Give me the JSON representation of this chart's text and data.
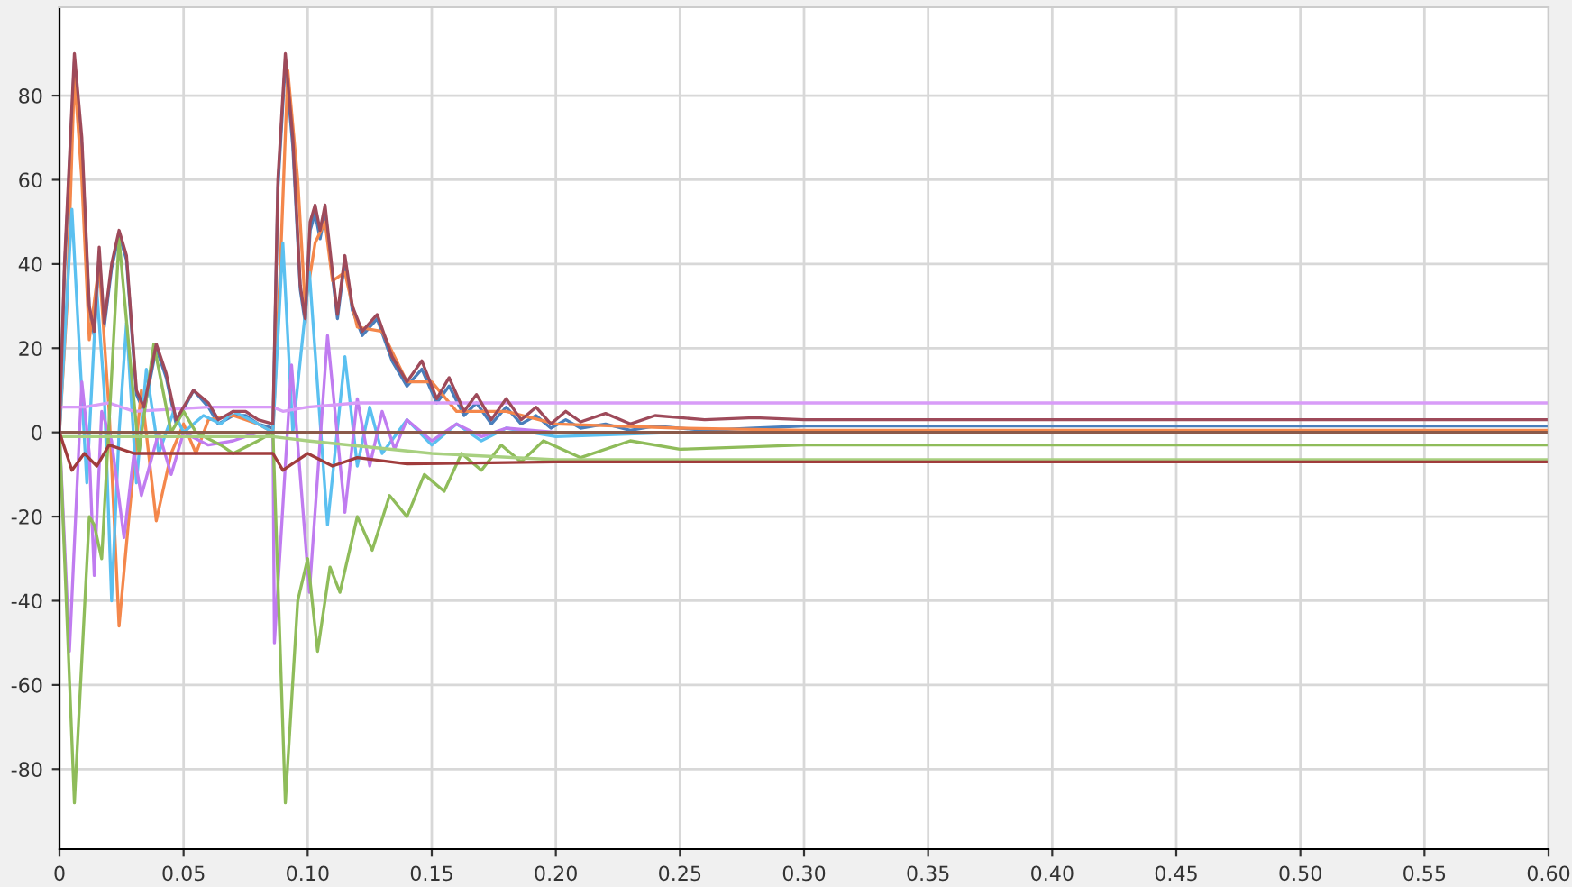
{
  "chart_data": {
    "type": "line",
    "xlim": [
      0,
      0.6
    ],
    "ylim": [
      -99,
      101
    ],
    "xticks": [
      0,
      {
        "value": 0.05,
        "label": "0.05"
      },
      {
        "value": 0.1,
        "label": "0.10"
      },
      {
        "value": 0.15,
        "label": "0.15"
      },
      {
        "value": 0.2,
        "label": "0.20"
      },
      {
        "value": 0.25,
        "label": "0.25"
      },
      {
        "value": 0.3,
        "label": "0.30"
      },
      {
        "value": 0.35,
        "label": "0.35"
      },
      {
        "value": 0.4,
        "label": "0.40"
      },
      {
        "value": 0.45,
        "label": "0.45"
      },
      {
        "value": 0.5,
        "label": "0.50"
      },
      {
        "value": 0.55,
        "label": "0.55"
      },
      {
        "value": 0.6,
        "label": "0.60"
      }
    ],
    "yticks": [
      -80,
      -60,
      -40,
      -20,
      0,
      20,
      40,
      60,
      80
    ],
    "grid": true,
    "legend": false,
    "marker": "none",
    "line_style": "solid",
    "series": [
      {
        "color": "#4a7ebb",
        "x": [
          0,
          0.002,
          0.006,
          0.009,
          0.012,
          0.014,
          0.016,
          0.018,
          0.021,
          0.024,
          0.027,
          0.031,
          0.034,
          0.039,
          0.043,
          0.047,
          0.054,
          0.06,
          0.064,
          0.07,
          0.075,
          0.08,
          0.086,
          0.088,
          0.091,
          0.094,
          0.097,
          0.099,
          0.101,
          0.103,
          0.105,
          0.107,
          0.11,
          0.112,
          0.115,
          0.118,
          0.122,
          0.128,
          0.134,
          0.14,
          0.146,
          0.152,
          0.157,
          0.163,
          0.168,
          0.174,
          0.18,
          0.186,
          0.192,
          0.198,
          0.204,
          0.21,
          0.22,
          0.23,
          0.24,
          0.26,
          0.28,
          0.3,
          0.6
        ],
        "values": [
          0,
          38,
          88,
          68,
          29,
          23,
          42,
          25,
          39,
          47,
          41,
          9,
          5,
          20,
          13,
          2,
          10,
          6,
          2,
          4,
          4,
          2,
          1,
          58,
          88,
          68,
          34,
          26,
          48,
          52,
          46,
          52,
          37,
          27,
          41,
          29,
          23,
          27,
          17,
          11,
          15,
          7,
          11,
          4,
          7,
          2,
          6,
          2,
          4,
          1,
          3,
          1,
          2,
          0.5,
          1.5,
          0.5,
          1,
          1.5,
          1.5
        ]
      },
      {
        "color": "#f4874b",
        "x": [
          0,
          0.003,
          0.006,
          0.009,
          0.012,
          0.016,
          0.02,
          0.024,
          0.028,
          0.033,
          0.039,
          0.045,
          0.05,
          0.055,
          0.06,
          0.07,
          0.08,
          0.086,
          0.089,
          0.092,
          0.096,
          0.099,
          0.103,
          0.107,
          0.11,
          0.115,
          0.12,
          0.13,
          0.14,
          0.15,
          0.16,
          0.18,
          0.2,
          0.25,
          0.3,
          0.6
        ],
        "values": [
          0,
          30,
          85,
          60,
          22,
          40,
          5,
          -46,
          -20,
          10,
          -21,
          -5,
          2,
          -5,
          3,
          4,
          2,
          0,
          40,
          86,
          60,
          30,
          45,
          50,
          36,
          38,
          25,
          24,
          12,
          12,
          5,
          5,
          2,
          1,
          0.5,
          0.5
        ]
      },
      {
        "color": "#5bc0f0",
        "x": [
          0,
          0.005,
          0.008,
          0.011,
          0.015,
          0.018,
          0.021,
          0.024,
          0.027,
          0.031,
          0.035,
          0.04,
          0.046,
          0.05,
          0.058,
          0.065,
          0.07,
          0.08,
          0.086,
          0.09,
          0.094,
          0.1007,
          0.108,
          0.115,
          0.12,
          0.125,
          0.13,
          0.14,
          0.15,
          0.16,
          0.17,
          0.18,
          0.2,
          0.25,
          0.6
        ],
        "values": [
          0,
          53,
          20,
          -12,
          34,
          10,
          -40,
          0,
          26,
          -12,
          15,
          -5,
          5,
          0,
          4,
          2,
          5,
          2,
          0,
          45,
          0,
          38,
          -22,
          18,
          -8,
          6,
          -5,
          3,
          -3,
          2,
          -2,
          1,
          -1,
          0,
          0
        ]
      },
      {
        "color": "#c07cf0",
        "x": [
          0,
          0.004,
          0.009,
          0.012,
          0.014,
          0.017,
          0.021,
          0.026,
          0.03,
          0.033,
          0.04,
          0.045,
          0.05,
          0.06,
          0.07,
          0.08,
          0.086,
          0.0866,
          0.0935,
          0.1007,
          0.108,
          0.115,
          0.12,
          0.125,
          0.13,
          0.135,
          0.14,
          0.15,
          0.16,
          0.17,
          0.18,
          0.2,
          0.25,
          0.6
        ],
        "values": [
          0,
          -52,
          12,
          -5,
          -34,
          5,
          -2,
          -25,
          -5,
          -15,
          0,
          -10,
          0,
          -3,
          -2,
          0,
          0,
          -50,
          16,
          -38,
          23,
          -19,
          8,
          -8,
          5,
          -4,
          3,
          -2,
          2,
          -1,
          1,
          0,
          0,
          0
        ]
      },
      {
        "color": "#d89cf8",
        "x": [
          0,
          0.01,
          0.02,
          0.03,
          0.06,
          0.086,
          0.09,
          0.1,
          0.12,
          0.6
        ],
        "values": [
          6,
          6,
          7,
          5,
          6,
          6,
          5,
          6,
          7,
          7
        ]
      },
      {
        "color": "#8fbc5a",
        "x": [
          0,
          0.006,
          0.012,
          0.014,
          0.017,
          0.024,
          0.028,
          0.032,
          0.038,
          0.045,
          0.05,
          0.055,
          0.065,
          0.07,
          0.08,
          0.086,
          0.091,
          0.096,
          0.1,
          0.104,
          0.109,
          0.113,
          0.12,
          0.126,
          0.133,
          0.14,
          0.147,
          0.155,
          0.162,
          0.17,
          0.178,
          0.186,
          0.195,
          0.21,
          0.23,
          0.25,
          0.3,
          0.6
        ],
        "values": [
          0,
          -88,
          -20,
          -22,
          -30,
          46,
          20,
          -5,
          21,
          0,
          5,
          0,
          -3,
          -5,
          -2,
          0,
          -88,
          -40,
          -30,
          -52,
          -32,
          -38,
          -20,
          -28,
          -15,
          -20,
          -10,
          -14,
          -5,
          -9,
          -3,
          -7,
          -2,
          -6,
          -2,
          -4,
          -3,
          -3
        ]
      },
      {
        "color": "#a8d080",
        "x": [
          0,
          0.086,
          0.1,
          0.15,
          0.2,
          0.6
        ],
        "values": [
          -1,
          -1,
          -2,
          -5,
          -6.5,
          -6.5
        ]
      },
      {
        "color": "#a03c3c",
        "x": [
          0,
          0.005,
          0.01,
          0.015,
          0.02,
          0.03,
          0.086,
          0.09,
          0.1,
          0.11,
          0.12,
          0.14,
          0.2,
          0.6
        ],
        "values": [
          0,
          -9,
          -5,
          -8,
          -3,
          -5,
          -5,
          -9,
          -5,
          -8,
          -6,
          -7.5,
          -7,
          -7
        ]
      },
      {
        "color": "#8b5a4a",
        "x": [
          0,
          0.6
        ],
        "values": [
          0,
          0
        ]
      },
      {
        "color": "#9e4a5a",
        "x": [
          0,
          0.002,
          0.006,
          0.009,
          0.012,
          0.014,
          0.016,
          0.018,
          0.021,
          0.024,
          0.027,
          0.031,
          0.034,
          0.039,
          0.043,
          0.047,
          0.054,
          0.06,
          0.064,
          0.07,
          0.075,
          0.08,
          0.086,
          0.088,
          0.091,
          0.094,
          0.097,
          0.099,
          0.101,
          0.103,
          0.105,
          0.107,
          0.11,
          0.112,
          0.115,
          0.118,
          0.122,
          0.128,
          0.134,
          0.14,
          0.146,
          0.152,
          0.157,
          0.163,
          0.168,
          0.174,
          0.18,
          0.186,
          0.192,
          0.198,
          0.204,
          0.21,
          0.22,
          0.23,
          0.24,
          0.26,
          0.28,
          0.3,
          0.6
        ],
        "values": [
          0,
          40,
          90,
          70,
          30,
          24,
          44,
          26,
          40,
          48,
          42,
          10,
          6,
          21,
          14,
          3,
          10,
          7,
          3,
          5,
          5,
          3,
          2,
          60,
          90,
          70,
          35,
          27,
          50,
          54,
          48,
          54,
          38,
          28,
          42,
          30,
          24,
          28,
          18,
          12,
          17,
          8,
          13,
          5,
          9,
          3,
          8,
          3,
          6,
          2,
          5,
          2.5,
          4.5,
          2,
          4,
          3,
          3.5,
          3,
          3
        ]
      }
    ]
  }
}
